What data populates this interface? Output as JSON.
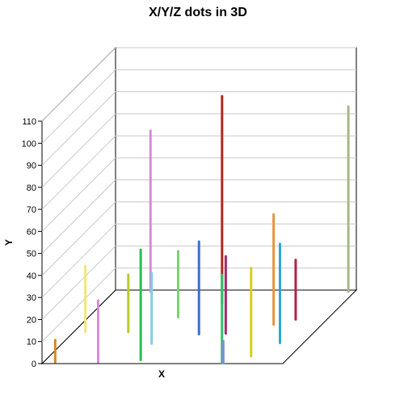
{
  "chart_data": {
    "type": "3d-bar",
    "title": "X/Y/Z dots in 3D",
    "xlabel": "X",
    "ylabel": "Y",
    "zlabel": "",
    "ylim": [
      0,
      110
    ],
    "yticks": [
      "0",
      "10",
      "20",
      "30",
      "40",
      "50",
      "60",
      "70",
      "80",
      "90",
      "100",
      "110"
    ],
    "grid": true,
    "points": [
      {
        "x": 0.9,
        "z": 0.2,
        "y": 10,
        "color": "#d08a2a"
      },
      {
        "x": 0.9,
        "z": 4.3,
        "y": 30,
        "color": "#f5e47a"
      },
      {
        "x": 2.8,
        "z": 9.8,
        "y": 73,
        "color": "#d98bd8"
      },
      {
        "x": 4.2,
        "z": 0.2,
        "y": 28,
        "color": "#d98bd8"
      },
      {
        "x": 4.2,
        "z": 4.3,
        "y": 26,
        "color": "#b8cc2a"
      },
      {
        "x": 6.9,
        "z": 2.7,
        "y": 32,
        "color": "#7fcfe5"
      },
      {
        "x": 6.9,
        "z": 6.3,
        "y": 30,
        "color": "#7ad46a"
      },
      {
        "x": 7.3,
        "z": 0.5,
        "y": 50,
        "color": "#27c050"
      },
      {
        "x": 9.2,
        "z": 8.2,
        "y": 94,
        "color": "#b3261e"
      },
      {
        "x": 9.8,
        "z": 4.0,
        "y": 42,
        "color": "#3a70cc"
      },
      {
        "x": 11.8,
        "z": 4.1,
        "y": 35,
        "color": "#a8286a"
      },
      {
        "x": 13.8,
        "z": 0.05,
        "y": 40,
        "color": "#2ec06a"
      },
      {
        "x": 13.9,
        "z": 0.05,
        "y": 10,
        "color": "#7a8ee0"
      },
      {
        "x": 14.8,
        "z": 5.3,
        "y": 50,
        "color": "#e7943d"
      },
      {
        "x": 15.5,
        "z": 1.0,
        "y": 40,
        "color": "#d8cc20"
      },
      {
        "x": 16.1,
        "z": 6.0,
        "y": 27,
        "color": "#b0204a"
      },
      {
        "x": 16.7,
        "z": 2.8,
        "y": 45,
        "color": "#2aa6dc"
      },
      {
        "x": 18.0,
        "z": 9.8,
        "y": 84,
        "color": "#a8b889"
      }
    ]
  }
}
